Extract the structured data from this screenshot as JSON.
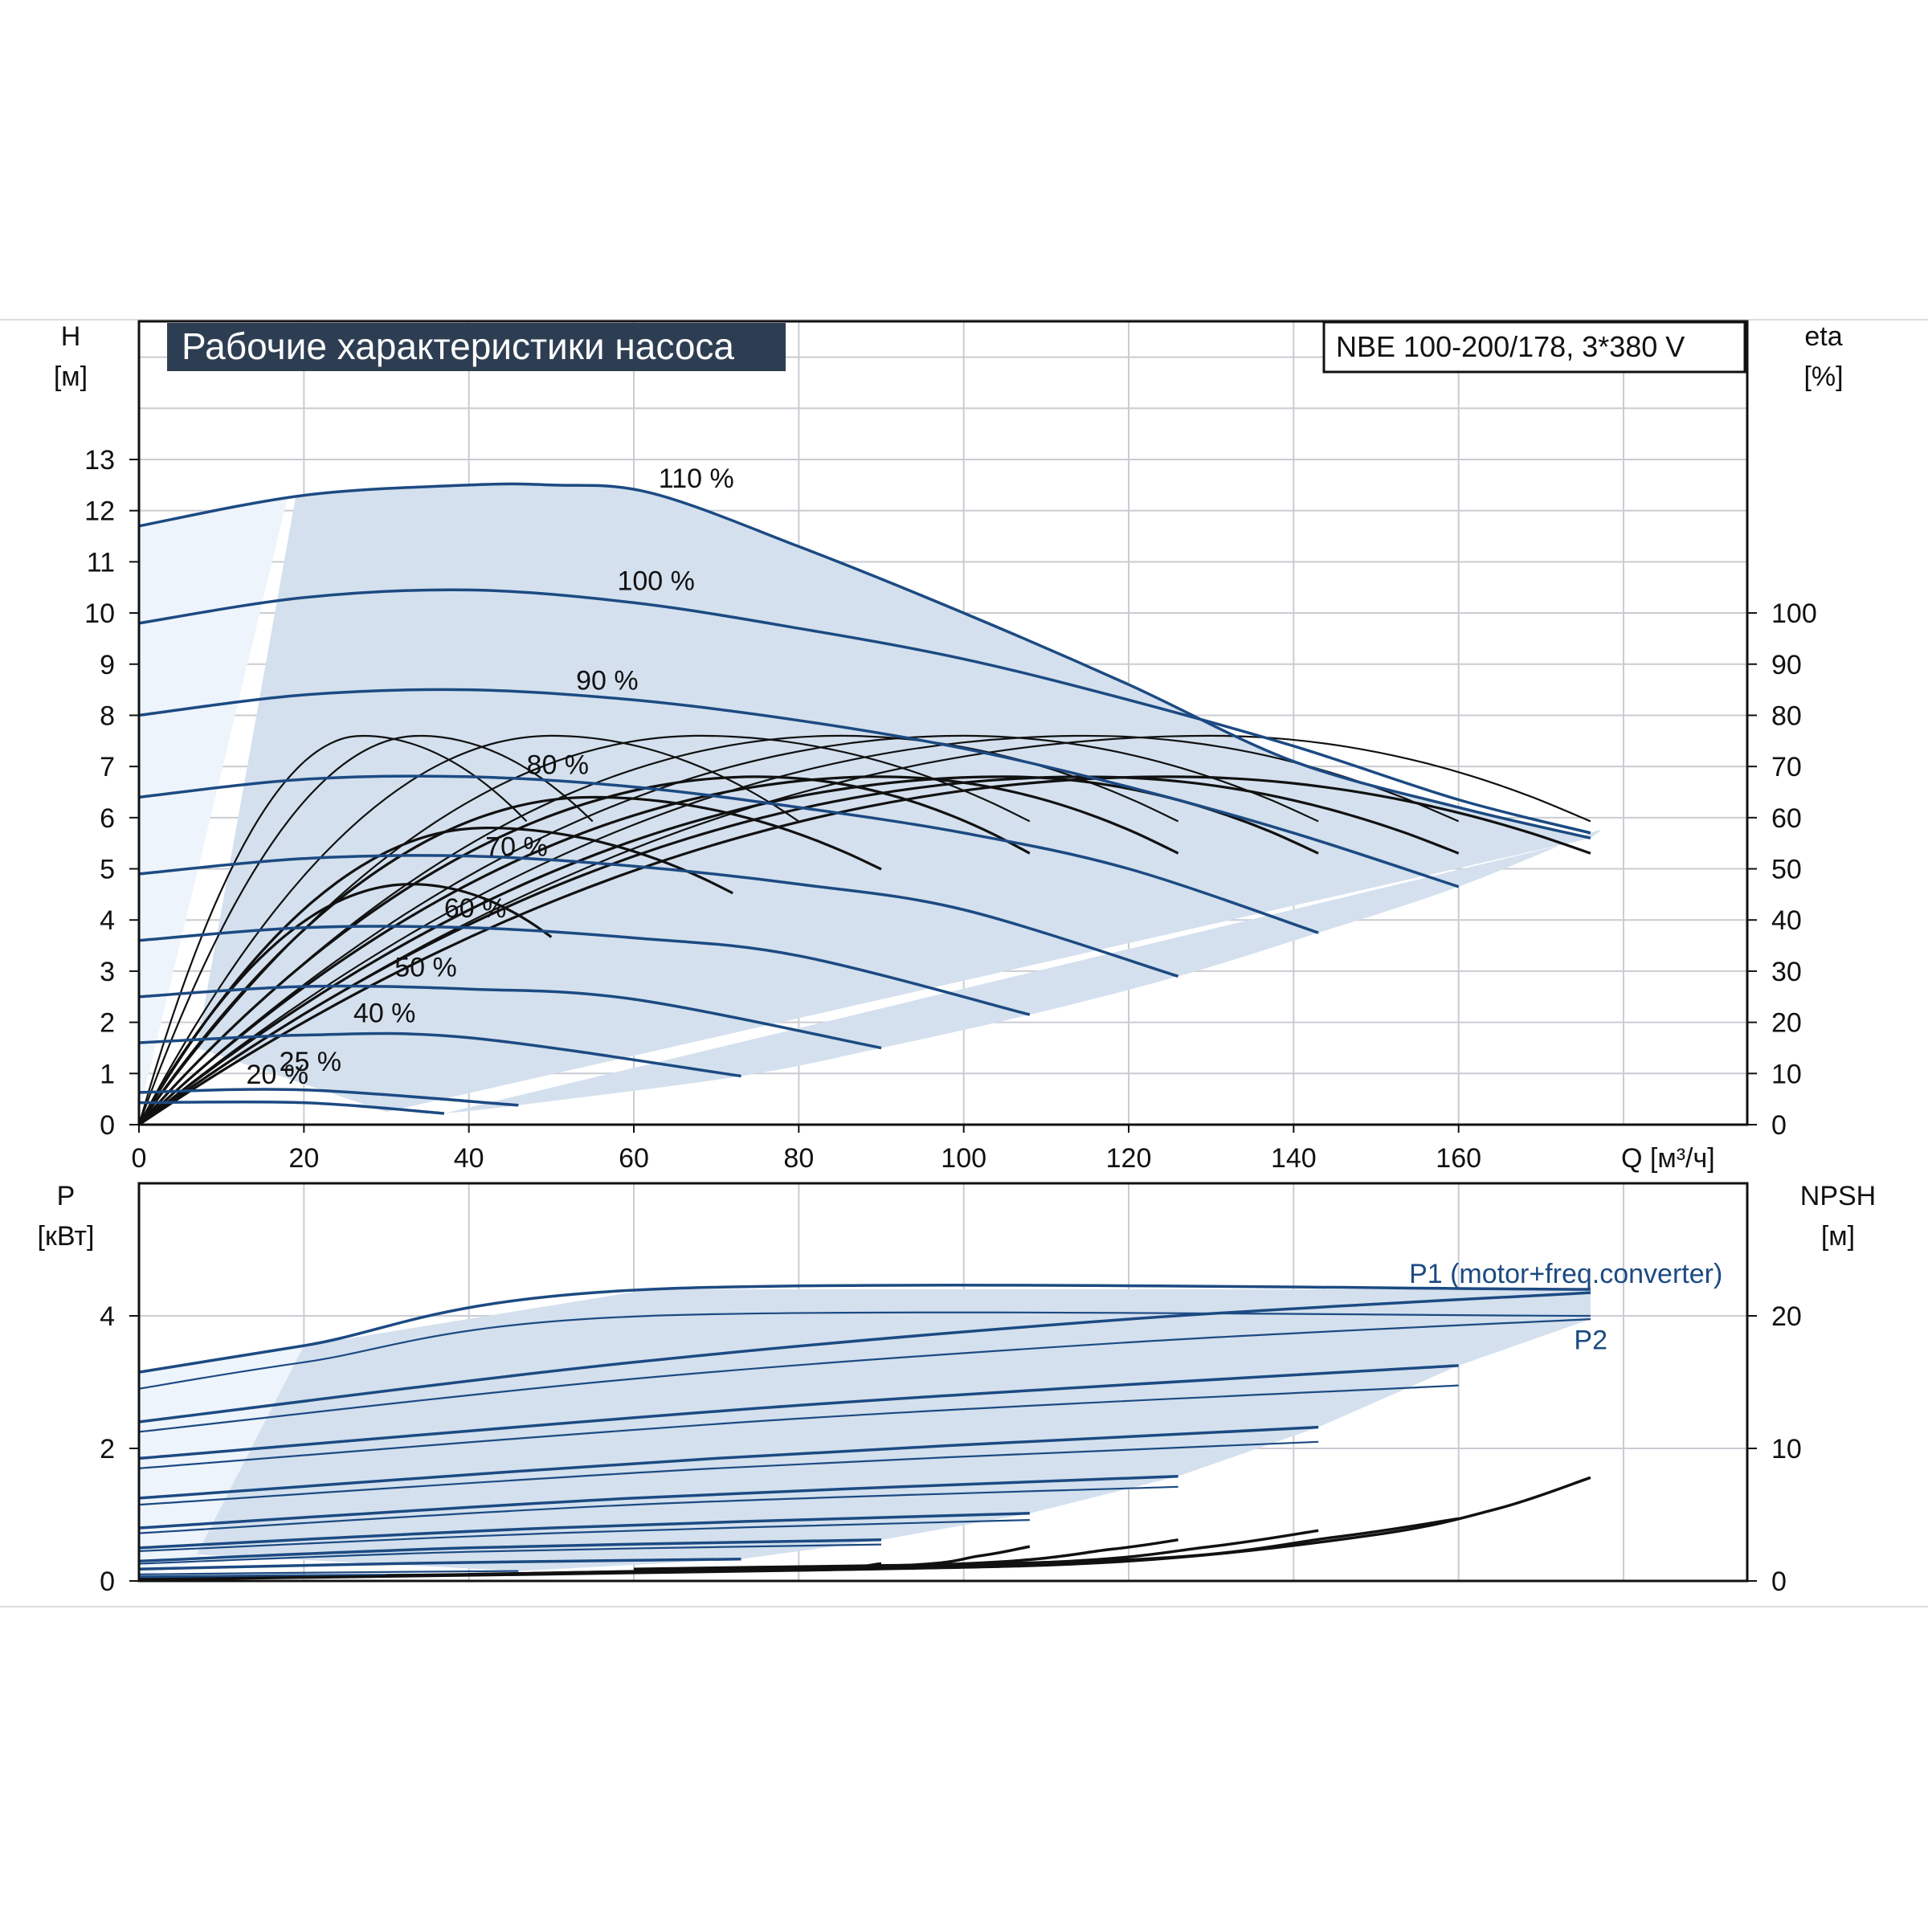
{
  "colors": {
    "curve_blue": "#1c4a82",
    "fill_blue": "#d4e0ee",
    "fill_light": "#eef4fb",
    "grid": "#c9ccd1",
    "eta_black": "#111111",
    "title_bg": "#2e3e52"
  },
  "chart_data": [
    {
      "type": "line",
      "title": "Рабочие характеристики насоса",
      "model_label": "NBE 100-200/178, 3*380 V",
      "ylabel": "H",
      "ylabel_unit": "[м]",
      "y2label": "eta",
      "y2label_unit": "[%]",
      "xlabel": "Q [м³/ч]",
      "xlim": [
        0,
        195
      ],
      "ylim": [
        0,
        15.7
      ],
      "y2lim": [
        0,
        157
      ],
      "x_ticks": [
        0,
        20,
        40,
        60,
        80,
        100,
        120,
        140,
        160
      ],
      "y_ticks": [
        0,
        1,
        2,
        3,
        4,
        5,
        6,
        7,
        8,
        9,
        10,
        11,
        12,
        13
      ],
      "y2_ticks": [
        0,
        10,
        20,
        30,
        40,
        50,
        60,
        70,
        80,
        90,
        100
      ],
      "grid": true,
      "speed_curves": [
        {
          "label": "110 %",
          "label_at": [
            63,
            12.45
          ],
          "points": [
            [
              0,
              11.7
            ],
            [
              20,
              12.3
            ],
            [
              40,
              12.5
            ],
            [
              50,
              12.5
            ],
            [
              62,
              12.35
            ],
            [
              80,
              11.3
            ],
            [
              100,
              10.0
            ],
            [
              120,
              8.6
            ],
            [
              140,
              7.1
            ],
            [
              160,
              6.2
            ],
            [
              176,
              5.6
            ]
          ]
        },
        {
          "label": "100 %",
          "label_at": [
            58,
            10.45
          ],
          "points": [
            [
              0,
              9.8
            ],
            [
              20,
              10.3
            ],
            [
              40,
              10.45
            ],
            [
              60,
              10.2
            ],
            [
              80,
              9.7
            ],
            [
              100,
              9.1
            ],
            [
              120,
              8.3
            ],
            [
              140,
              7.4
            ],
            [
              160,
              6.35
            ],
            [
              176,
              5.7
            ]
          ]
        },
        {
          "label": "90 %",
          "label_at": [
            53,
            8.5
          ],
          "points": [
            [
              0,
              8.0
            ],
            [
              20,
              8.4
            ],
            [
              40,
              8.5
            ],
            [
              60,
              8.3
            ],
            [
              80,
              7.9
            ],
            [
              100,
              7.35
            ],
            [
              120,
              6.6
            ],
            [
              140,
              5.7
            ],
            [
              160,
              4.65
            ]
          ]
        },
        {
          "label": "80 %",
          "label_at": [
            47,
            6.85
          ],
          "points": [
            [
              0,
              6.4
            ],
            [
              20,
              6.75
            ],
            [
              40,
              6.8
            ],
            [
              60,
              6.6
            ],
            [
              80,
              6.2
            ],
            [
              100,
              5.7
            ],
            [
              120,
              5.0
            ],
            [
              143,
              3.75
            ]
          ]
        },
        {
          "label": "70 %",
          "label_at": [
            42,
            5.25
          ],
          "points": [
            [
              0,
              4.9
            ],
            [
              20,
              5.2
            ],
            [
              40,
              5.25
            ],
            [
              60,
              5.05
            ],
            [
              80,
              4.7
            ],
            [
              100,
              4.2
            ],
            [
              126,
              2.9
            ]
          ]
        },
        {
          "label": "60 %",
          "label_at": [
            37,
            4.05
          ],
          "points": [
            [
              0,
              3.6
            ],
            [
              20,
              3.85
            ],
            [
              40,
              3.85
            ],
            [
              60,
              3.65
            ],
            [
              80,
              3.3
            ],
            [
              108,
              2.15
            ]
          ]
        },
        {
          "label": "50 %",
          "label_at": [
            31,
            2.9
          ],
          "points": [
            [
              0,
              2.5
            ],
            [
              20,
              2.7
            ],
            [
              40,
              2.65
            ],
            [
              60,
              2.45
            ],
            [
              90,
              1.5
            ]
          ]
        },
        {
          "label": "40 %",
          "label_at": [
            26,
            2.0
          ],
          "points": [
            [
              0,
              1.6
            ],
            [
              20,
              1.75
            ],
            [
              40,
              1.7
            ],
            [
              73,
              0.95
            ]
          ]
        },
        {
          "label": "25 %",
          "label_at": [
            17,
            1.05
          ],
          "points": [
            [
              0,
              0.63
            ],
            [
              20,
              0.68
            ],
            [
              46,
              0.38
            ]
          ]
        },
        {
          "label": "20 %",
          "label_at": [
            13,
            0.8
          ],
          "points": [
            [
              0,
              0.43
            ],
            [
              20,
              0.43
            ],
            [
              37,
              0.22
            ]
          ]
        }
      ]
    },
    {
      "type": "line",
      "ylabel": "P",
      "ylabel_unit": "[кВт]",
      "y2label": "NPSH",
      "y2label_unit": "[м]",
      "xlim": [
        0,
        195
      ],
      "ylim": [
        0,
        6
      ],
      "y2lim": [
        0,
        30
      ],
      "y_ticks": [
        0,
        2,
        4
      ],
      "y2_ticks": [
        0,
        10,
        20
      ],
      "grid": true,
      "annotations": [
        {
          "text": "P1 (motor+freq.converter)",
          "at": [
            154,
            4.5
          ]
        },
        {
          "text": "P2",
          "at": [
            174,
            3.5
          ]
        }
      ],
      "power_curves": [
        {
          "points": [
            [
              0,
              3.15
            ],
            [
              20,
              3.55
            ],
            [
              62,
              4.4
            ],
            [
              176,
              4.4
            ]
          ]
        },
        {
          "points": [
            [
              0,
              2.9
            ],
            [
              20,
              3.3
            ],
            [
              62,
              4.0
            ],
            [
              176,
              4.0
            ]
          ]
        },
        {
          "points": [
            [
              0,
              2.4
            ],
            [
              60,
              3.3
            ],
            [
              120,
              3.95
            ],
            [
              176,
              4.35
            ]
          ]
        },
        {
          "points": [
            [
              0,
              2.25
            ],
            [
              60,
              3.05
            ],
            [
              120,
              3.6
            ],
            [
              176,
              3.95
            ]
          ]
        },
        {
          "points": [
            [
              0,
              1.85
            ],
            [
              80,
              2.65
            ],
            [
              160,
              3.25
            ]
          ]
        },
        {
          "points": [
            [
              0,
              1.7
            ],
            [
              80,
              2.45
            ],
            [
              160,
              2.95
            ]
          ]
        },
        {
          "points": [
            [
              0,
              1.25
            ],
            [
              70,
              1.85
            ],
            [
              143,
              2.32
            ]
          ]
        },
        {
          "points": [
            [
              0,
              1.15
            ],
            [
              70,
              1.7
            ],
            [
              143,
              2.1
            ]
          ]
        },
        {
          "points": [
            [
              0,
              0.8
            ],
            [
              60,
              1.25
            ],
            [
              126,
              1.58
            ]
          ]
        },
        {
          "points": [
            [
              0,
              0.72
            ],
            [
              60,
              1.15
            ],
            [
              126,
              1.42
            ]
          ]
        },
        {
          "points": [
            [
              0,
              0.5
            ],
            [
              50,
              0.8
            ],
            [
              108,
              1.02
            ]
          ]
        },
        {
          "points": [
            [
              0,
              0.45
            ],
            [
              50,
              0.72
            ],
            [
              108,
              0.92
            ]
          ]
        },
        {
          "points": [
            [
              0,
              0.3
            ],
            [
              40,
              0.5
            ],
            [
              90,
              0.62
            ]
          ]
        },
        {
          "points": [
            [
              0,
              0.26
            ],
            [
              40,
              0.44
            ],
            [
              90,
              0.55
            ]
          ]
        },
        {
          "points": [
            [
              0,
              0.18
            ],
            [
              35,
              0.27
            ],
            [
              73,
              0.33
            ]
          ]
        },
        {
          "points": [
            [
              0,
              0.1
            ],
            [
              25,
              0.13
            ],
            [
              46,
              0.15
            ]
          ]
        },
        {
          "points": [
            [
              0,
              0.06
            ],
            [
              20,
              0.08
            ],
            [
              37,
              0.09
            ]
          ]
        }
      ],
      "npsh_curves": [
        {
          "points": [
            [
              0,
              0.1
            ],
            [
              80,
              0.8
            ],
            [
              120,
              1.5
            ],
            [
              150,
              3.5
            ],
            [
              165,
              5.5
            ],
            [
              176,
              7.8
            ]
          ]
        },
        {
          "points": [
            [
              60,
              0.9
            ],
            [
              120,
              1.6
            ],
            [
              145,
              3.3
            ],
            [
              160,
              4.7
            ]
          ]
        },
        {
          "points": [
            [
              60,
              0.7
            ],
            [
              110,
              1.4
            ],
            [
              130,
              2.6
            ],
            [
              143,
              3.8
            ]
          ]
        },
        {
          "points": [
            [
              50,
              0.6
            ],
            [
              100,
              1.3
            ],
            [
              118,
              2.4
            ],
            [
              126,
              3.1
            ]
          ]
        },
        {
          "points": [
            [
              40,
              0.5
            ],
            [
              90,
              1.1
            ],
            [
              102,
              1.9
            ],
            [
              108,
              2.6
            ]
          ]
        },
        {
          "points": [
            [
              30,
              0.4
            ],
            [
              80,
              0.9
            ],
            [
              90,
              1.3
            ]
          ]
        }
      ]
    }
  ]
}
